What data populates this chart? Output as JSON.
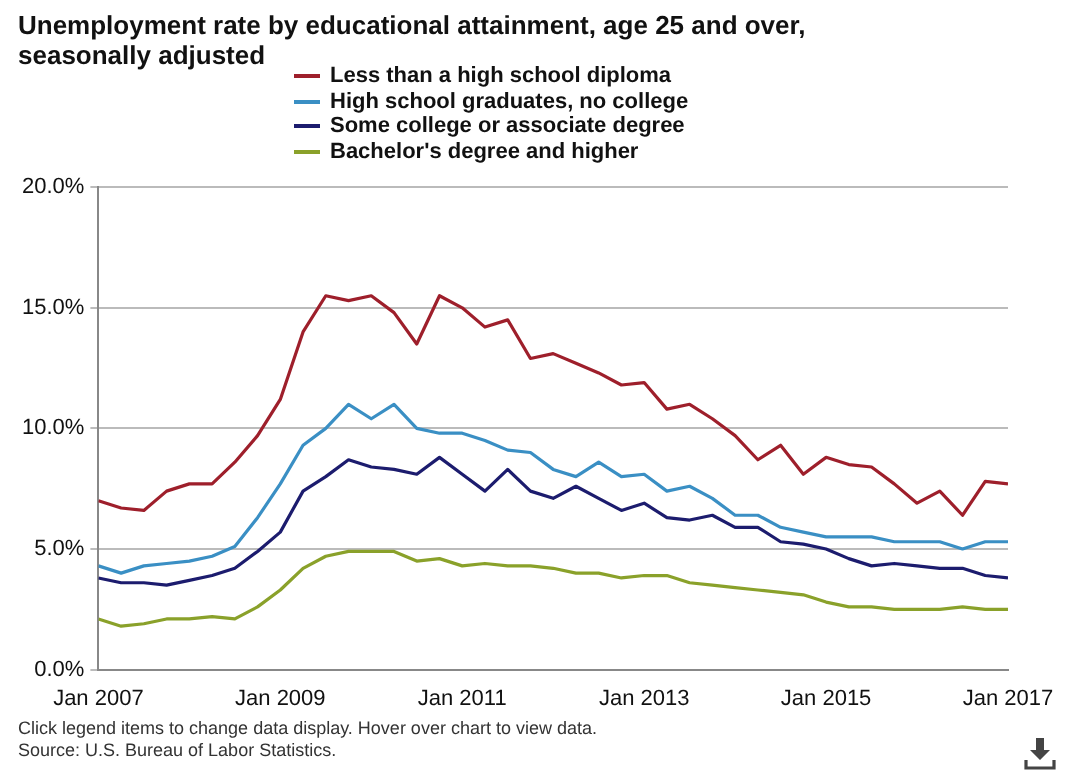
{
  "chart_data": {
    "type": "line",
    "title": "Unemployment rate by educational attainment, age 25 and over, seasonally adjusted",
    "x": [
      "2007-01",
      "2007-04",
      "2007-07",
      "2007-10",
      "2008-01",
      "2008-04",
      "2008-07",
      "2008-10",
      "2009-01",
      "2009-04",
      "2009-07",
      "2009-10",
      "2010-01",
      "2010-04",
      "2010-07",
      "2010-10",
      "2011-01",
      "2011-04",
      "2011-07",
      "2011-10",
      "2012-01",
      "2012-04",
      "2012-07",
      "2012-10",
      "2013-01",
      "2013-04",
      "2013-07",
      "2013-10",
      "2014-01",
      "2014-04",
      "2014-07",
      "2014-10",
      "2015-01",
      "2015-04",
      "2015-07",
      "2015-10",
      "2016-01",
      "2016-04",
      "2016-07",
      "2016-10",
      "2017-01"
    ],
    "series": [
      {
        "name": "Less than a high school diploma",
        "color": "#9e1f2b",
        "values": [
          7.0,
          6.7,
          6.6,
          7.4,
          7.7,
          7.7,
          8.6,
          9.7,
          11.2,
          14.0,
          15.5,
          15.3,
          15.5,
          14.8,
          13.5,
          15.5,
          15.0,
          14.2,
          14.5,
          12.9,
          13.1,
          12.7,
          12.3,
          11.8,
          11.9,
          10.8,
          11.0,
          10.4,
          9.7,
          8.7,
          9.3,
          8.1,
          8.8,
          8.5,
          8.4,
          7.7,
          6.9,
          7.4,
          6.4,
          7.8,
          7.7
        ]
      },
      {
        "name": "High school graduates, no college",
        "color": "#3a8fc4",
        "values": [
          4.3,
          4.0,
          4.3,
          4.4,
          4.5,
          4.7,
          5.1,
          6.3,
          7.7,
          9.3,
          10.0,
          11.0,
          10.4,
          11.0,
          10.0,
          9.8,
          9.8,
          9.5,
          9.1,
          9.0,
          8.3,
          8.0,
          8.6,
          8.0,
          8.1,
          7.4,
          7.6,
          7.1,
          6.4,
          6.4,
          5.9,
          5.7,
          5.5,
          5.5,
          5.5,
          5.3,
          5.3,
          5.3,
          5.0,
          5.3,
          5.3
        ]
      },
      {
        "name": "Some college or associate degree",
        "color": "#1c1c6e",
        "values": [
          3.8,
          3.6,
          3.6,
          3.5,
          3.7,
          3.9,
          4.2,
          4.9,
          5.7,
          7.4,
          8.0,
          8.7,
          8.4,
          8.3,
          8.1,
          8.8,
          8.1,
          7.4,
          8.3,
          7.4,
          7.1,
          7.6,
          7.1,
          6.6,
          6.9,
          6.3,
          6.2,
          6.4,
          5.9,
          5.9,
          5.3,
          5.2,
          5.0,
          4.6,
          4.3,
          4.4,
          4.3,
          4.2,
          4.2,
          3.9,
          3.8
        ]
      },
      {
        "name": "Bachelor's degree and higher",
        "color": "#8aa12a",
        "values": [
          2.1,
          1.8,
          1.9,
          2.1,
          2.1,
          2.2,
          2.1,
          2.6,
          3.3,
          4.2,
          4.7,
          4.9,
          4.9,
          4.9,
          4.5,
          4.6,
          4.3,
          4.4,
          4.3,
          4.3,
          4.2,
          4.0,
          4.0,
          3.8,
          3.9,
          3.9,
          3.6,
          3.5,
          3.4,
          3.3,
          3.2,
          3.1,
          2.8,
          2.6,
          2.6,
          2.5,
          2.5,
          2.5,
          2.6,
          2.5,
          2.5
        ]
      }
    ],
    "xlim": [
      "2007-01",
      "2017-01"
    ],
    "xticks": [
      {
        "value": "2007-01",
        "label": "Jan 2007"
      },
      {
        "value": "2009-01",
        "label": "Jan 2009"
      },
      {
        "value": "2011-01",
        "label": "Jan 2011"
      },
      {
        "value": "2013-01",
        "label": "Jan 2013"
      },
      {
        "value": "2015-01",
        "label": "Jan 2015"
      },
      {
        "value": "2017-01",
        "label": "Jan 2017"
      }
    ],
    "ylim": [
      0,
      20
    ],
    "yticks": [
      {
        "value": 0,
        "label": "0.0%"
      },
      {
        "value": 5,
        "label": "5.0%"
      },
      {
        "value": 10,
        "label": "10.0%"
      },
      {
        "value": 15,
        "label": "15.0%"
      },
      {
        "value": 20,
        "label": "20.0%"
      }
    ],
    "grid": "y",
    "legend": "top",
    "marker": "none",
    "line_style": "solid",
    "annotations": [
      "Click legend items to change data display. Hover over chart to view data.",
      "Source: U.S. Bureau of Labor Statistics."
    ]
  }
}
